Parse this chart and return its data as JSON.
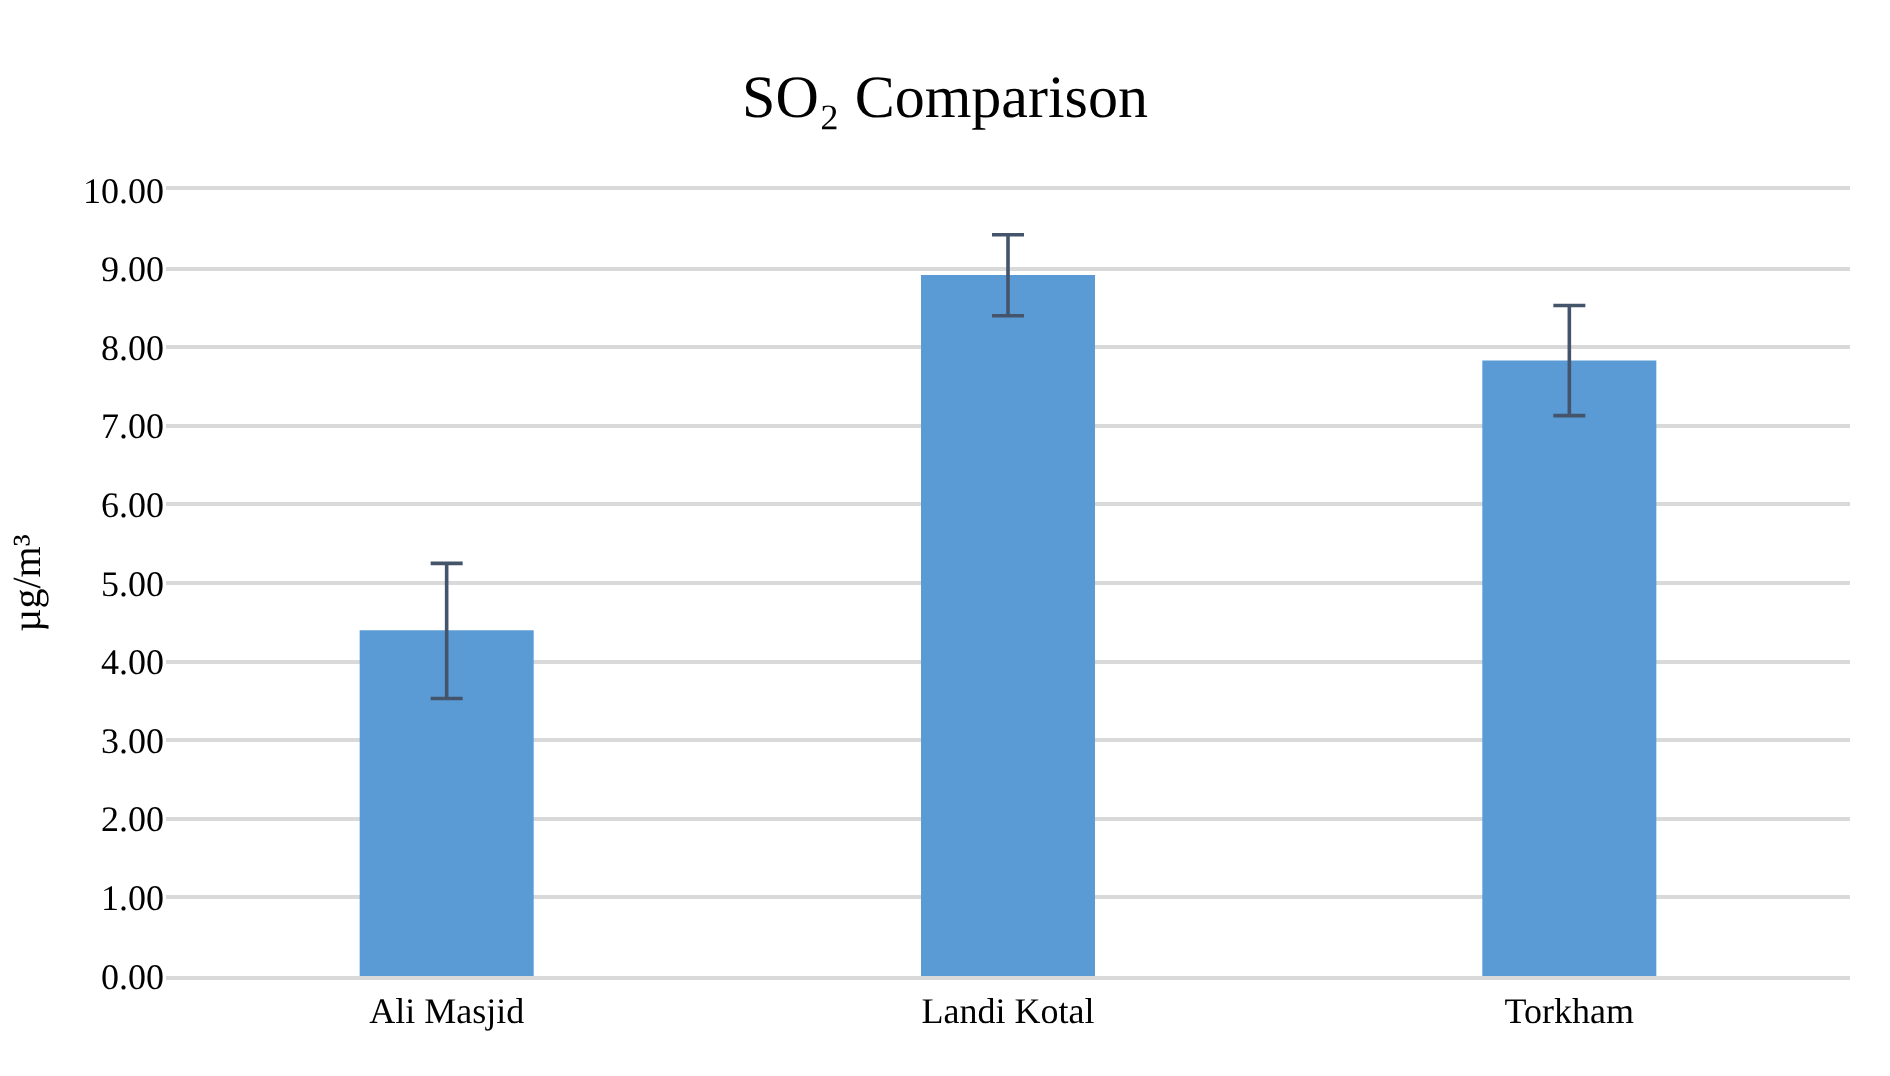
{
  "chart_data": {
    "type": "bar",
    "title": "SO₂ Comparison",
    "ylabel": "µg/m³",
    "categories": [
      "Ali Masjid",
      "Landi Kotal",
      "Torkham"
    ],
    "series": [
      {
        "color": "#5b9bd5",
        "values": [
          4.4,
          8.92,
          7.83
        ],
        "errors": [
          [
            3.53,
            5.25
          ],
          [
            8.4,
            9.43
          ],
          [
            7.13,
            8.53
          ]
        ]
      }
    ],
    "ylim": [
      0,
      10
    ],
    "yticks": [
      {
        "value": 0,
        "label": "0.00"
      },
      {
        "value": 1,
        "label": "1.00"
      },
      {
        "value": 2,
        "label": "2.00"
      },
      {
        "value": 3,
        "label": "3.00"
      },
      {
        "value": 4,
        "label": "4.00"
      },
      {
        "value": 5,
        "label": "5.00"
      },
      {
        "value": 6,
        "label": "6.00"
      },
      {
        "value": 7,
        "label": "7.00"
      },
      {
        "value": 8,
        "label": "8.00"
      },
      {
        "value": 9,
        "label": "9.00"
      },
      {
        "value": 10,
        "label": "10.00"
      }
    ],
    "grid": "y"
  }
}
